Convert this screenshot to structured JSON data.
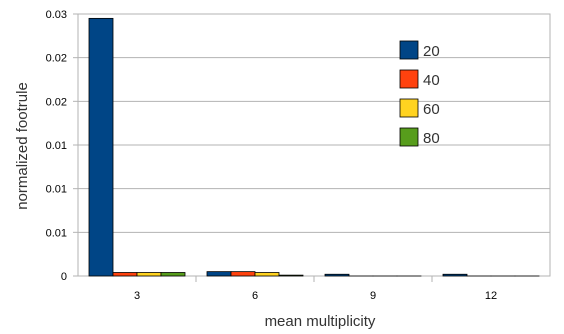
{
  "chart_data": {
    "type": "bar",
    "categories": [
      "3",
      "6",
      "9",
      "12"
    ],
    "series": [
      {
        "name": "20",
        "values": [
          0.0295,
          0.0005,
          0.0002,
          0.0002
        ],
        "color": "#004586"
      },
      {
        "name": "40",
        "values": [
          0.0004,
          0.0005,
          0.0,
          0.0
        ],
        "color": "#ff420e"
      },
      {
        "name": "60",
        "values": [
          0.0004,
          0.0004,
          0.0,
          0.0
        ],
        "color": "#ffd320"
      },
      {
        "name": "80",
        "values": [
          0.0004,
          0.0001,
          0.0,
          0.0
        ],
        "color": "#579d1c"
      }
    ],
    "xlabel": "mean multiplicity",
    "ylabel": "normalized footrule",
    "ylim": [
      0,
      0.03
    ],
    "yticks": [
      0,
      0.005,
      0.01,
      0.015,
      0.02,
      0.025,
      0.03
    ],
    "ytick_labels": [
      "0",
      "0.01",
      "0.01",
      "0.01",
      "0.02",
      "0.02",
      "0.03"
    ],
    "grid": true,
    "legend": "top-right"
  }
}
